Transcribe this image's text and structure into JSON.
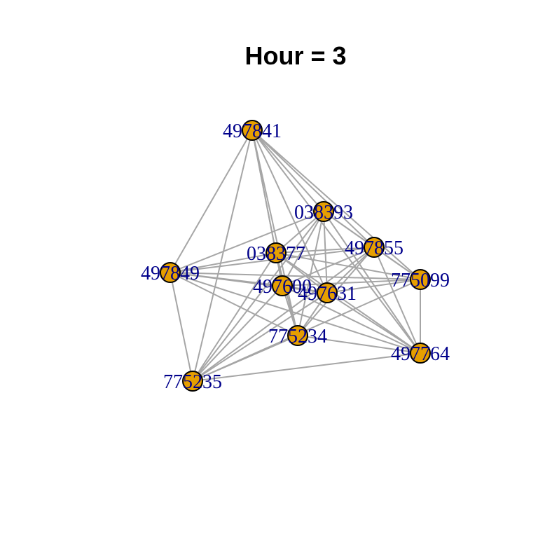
{
  "title": "Hour = 3",
  "colors": {
    "edge": "#a6a6a6",
    "node_fill": "#e69f00",
    "node_stroke": "#000000",
    "label": "#00008b",
    "background": "#ffffff"
  },
  "nodes": [
    {
      "id": "497841"
    },
    {
      "id": "038393"
    },
    {
      "id": "497855"
    },
    {
      "id": "038377"
    },
    {
      "id": "497849"
    },
    {
      "id": "775099"
    },
    {
      "id": "497600"
    },
    {
      "id": "497631"
    },
    {
      "id": "775234"
    },
    {
      "id": "497764"
    },
    {
      "id": "775235"
    }
  ],
  "edges": [
    [
      "497841",
      "038393"
    ],
    [
      "497841",
      "497855"
    ],
    [
      "497841",
      "038377"
    ],
    [
      "497841",
      "497849"
    ],
    [
      "497841",
      "775099"
    ],
    [
      "497841",
      "497600"
    ],
    [
      "497841",
      "497631"
    ],
    [
      "497841",
      "775234"
    ],
    [
      "497841",
      "497764"
    ],
    [
      "497841",
      "775235"
    ],
    [
      "038393",
      "497855"
    ],
    [
      "038393",
      "038377"
    ],
    [
      "038393",
      "497849"
    ],
    [
      "038393",
      "775099"
    ],
    [
      "038393",
      "497600"
    ],
    [
      "038393",
      "497631"
    ],
    [
      "038393",
      "775234"
    ],
    [
      "038393",
      "497764"
    ],
    [
      "038393",
      "775235"
    ],
    [
      "497855",
      "038377"
    ],
    [
      "497855",
      "497849"
    ],
    [
      "497855",
      "497600"
    ],
    [
      "497855",
      "497631"
    ],
    [
      "497855",
      "775234"
    ],
    [
      "497855",
      "497764"
    ],
    [
      "497855",
      "775235"
    ],
    [
      "497855",
      "775099"
    ],
    [
      "038377",
      "497849"
    ],
    [
      "038377",
      "775099"
    ],
    [
      "038377",
      "497600"
    ],
    [
      "038377",
      "497631"
    ],
    [
      "038377",
      "775234"
    ],
    [
      "038377",
      "497764"
    ],
    [
      "038377",
      "775235"
    ],
    [
      "497849",
      "775099"
    ],
    [
      "497849",
      "497600"
    ],
    [
      "497849",
      "497631"
    ],
    [
      "497849",
      "775234"
    ],
    [
      "497849",
      "497764"
    ],
    [
      "497849",
      "775235"
    ],
    [
      "775099",
      "497600"
    ],
    [
      "775099",
      "497631"
    ],
    [
      "775099",
      "497764"
    ],
    [
      "775099",
      "775235"
    ],
    [
      "497600",
      "497631"
    ],
    [
      "497600",
      "775234"
    ],
    [
      "497600",
      "497764"
    ],
    [
      "497600",
      "775235"
    ],
    [
      "497631",
      "775234"
    ],
    [
      "497631",
      "497764"
    ],
    [
      "497631",
      "775235"
    ],
    [
      "775234",
      "497764"
    ],
    [
      "775234",
      "775235"
    ],
    [
      "497764",
      "775235"
    ]
  ]
}
